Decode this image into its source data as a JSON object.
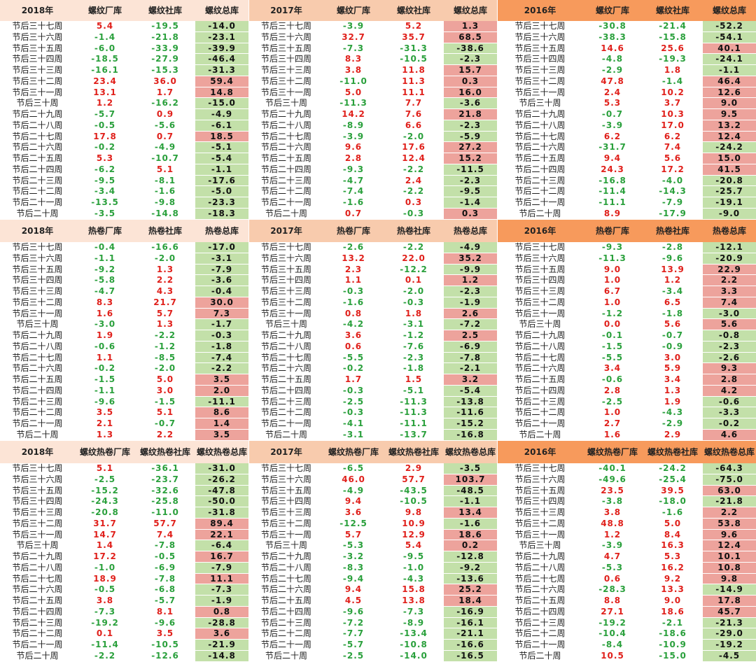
{
  "tables": [
    {
      "header": [
        "2018年",
        "螺纹厂库",
        "螺纹社库",
        "螺纹总库"
      ],
      "rows": [
        [
          "节后三十七周",
          "5.4",
          "-19.5",
          "-14.0"
        ],
        [
          "节后三十六周",
          "-1.4",
          "-21.8",
          "-23.1"
        ],
        [
          "节后三十五周",
          "-6.0",
          "-33.9",
          "-39.9"
        ],
        [
          "节后三十四周",
          "-18.5",
          "-27.9",
          "-46.4"
        ],
        [
          "节后三十三周",
          "-16.1",
          "-15.3",
          "-31.3"
        ],
        [
          "节后三十二周",
          "23.4",
          "36.0",
          "59.4"
        ],
        [
          "节后三十一周",
          "13.1",
          "1.7",
          "14.8"
        ],
        [
          "节后三十周",
          "1.2",
          "-16.2",
          "-15.0"
        ],
        [
          "节后二十九周",
          "-5.7",
          "0.9",
          "-4.9"
        ],
        [
          "节后二十八周",
          "-0.5",
          "-5.6",
          "-6.1"
        ],
        [
          "节后二十七周",
          "17.8",
          "0.7",
          "18.5"
        ],
        [
          "节后二十六周",
          "-0.2",
          "-4.9",
          "-5.1"
        ],
        [
          "节后二十五周",
          "5.3",
          "-10.7",
          "-5.4"
        ],
        [
          "节后二十四周",
          "-6.2",
          "5.1",
          "-1.1"
        ],
        [
          "节后二十三周",
          "-9.5",
          "-8.1",
          "-17.6"
        ],
        [
          "节后二十二周",
          "-3.4",
          "-1.6",
          "-5.0"
        ],
        [
          "节后二十一周",
          "-13.5",
          "-9.8",
          "-23.3"
        ],
        [
          "节后二十周",
          "-3.5",
          "-14.8",
          "-18.3"
        ]
      ]
    },
    {
      "header": [
        "2017年",
        "螺纹厂库",
        "螺纹社库",
        "螺纹总库"
      ],
      "rows": [
        [
          "节后三十七周",
          "-3.9",
          "5.2",
          "1.3"
        ],
        [
          "节后三十六周",
          "32.7",
          "35.7",
          "68.5"
        ],
        [
          "节后三十五周",
          "-7.3",
          "-31.3",
          "-38.6"
        ],
        [
          "节后三十四周",
          "8.3",
          "-10.5",
          "-2.3"
        ],
        [
          "节后三十三周",
          "3.8",
          "11.8",
          "15.7"
        ],
        [
          "节后三十二周",
          "-11.0",
          "11.3",
          "0.3"
        ],
        [
          "节后三十一周",
          "5.0",
          "11.1",
          "16.0"
        ],
        [
          "节后三十周",
          "-11.3",
          "7.7",
          "-3.6"
        ],
        [
          "节后二十九周",
          "14.2",
          "7.6",
          "21.8"
        ],
        [
          "节后二十八周",
          "-8.9",
          "6.6",
          "-2.3"
        ],
        [
          "节后二十七周",
          "-3.9",
          "-2.0",
          "-5.9"
        ],
        [
          "节后二十六周",
          "9.6",
          "17.6",
          "27.2"
        ],
        [
          "节后二十五周",
          "2.8",
          "12.4",
          "15.2"
        ],
        [
          "节后二十四周",
          "-9.3",
          "-2.2",
          "-11.5"
        ],
        [
          "节后二十三周",
          "-4.7",
          "2.4",
          "-2.3"
        ],
        [
          "节后二十二周",
          "-7.4",
          "-2.2",
          "-9.5"
        ],
        [
          "节后二十一周",
          "-1.6",
          "0.3",
          "-1.4"
        ],
        [
          "节后二十周",
          "0.7",
          "-0.3",
          "0.3"
        ]
      ]
    },
    {
      "header": [
        "2016年",
        "螺纹厂库",
        "螺纹社库",
        "螺纹总库"
      ],
      "rows": [
        [
          "节后三十七周",
          "-30.8",
          "-21.4",
          "-52.2"
        ],
        [
          "节后三十六周",
          "-38.3",
          "-15.8",
          "-54.1"
        ],
        [
          "节后三十五周",
          "14.6",
          "25.6",
          "40.1"
        ],
        [
          "节后三十四周",
          "-4.8",
          "-19.3",
          "-24.1"
        ],
        [
          "节后三十三周",
          "-2.9",
          "1.8",
          "-1.1"
        ],
        [
          "节后三十二周",
          "47.8",
          "-1.4",
          "46.4"
        ],
        [
          "节后三十一周",
          "2.4",
          "10.2",
          "12.6"
        ],
        [
          "节后三十周",
          "5.3",
          "3.7",
          "9.0"
        ],
        [
          "节后二十九周",
          "-0.7",
          "10.3",
          "9.5"
        ],
        [
          "节后二十八周",
          "-3.9",
          "17.0",
          "13.2"
        ],
        [
          "节后二十七周",
          "6.2",
          "6.2",
          "12.4"
        ],
        [
          "节后二十六周",
          "-31.7",
          "7.4",
          "-24.2"
        ],
        [
          "节后二十五周",
          "9.4",
          "5.6",
          "15.0"
        ],
        [
          "节后二十四周",
          "24.3",
          "17.2",
          "41.5"
        ],
        [
          "节后二十三周",
          "-16.8",
          "-4.0",
          "-20.8"
        ],
        [
          "节后二十二周",
          "-11.4",
          "-14.3",
          "-25.7"
        ],
        [
          "节后二十一周",
          "-11.1",
          "-7.9",
          "-19.1"
        ],
        [
          "节后二十周",
          "8.9",
          "-17.9",
          "-9.0"
        ]
      ]
    },
    {
      "header": [
        "2018年",
        "热卷厂库",
        "热卷社库",
        "热卷总库"
      ],
      "rows": [
        [
          "节后三十七周",
          "-0.4",
          "-16.6",
          "-17.0"
        ],
        [
          "节后三十六周",
          "-1.1",
          "-2.0",
          "-3.1"
        ],
        [
          "节后三十五周",
          "-9.2",
          "1.3",
          "-7.9"
        ],
        [
          "节后三十四周",
          "-5.8",
          "2.2",
          "-3.6"
        ],
        [
          "节后三十三周",
          "-4.7",
          "4.3",
          "-0.4"
        ],
        [
          "节后三十二周",
          "8.3",
          "21.7",
          "30.0"
        ],
        [
          "节后三十一周",
          "1.6",
          "5.7",
          "7.3"
        ],
        [
          "节后三十周",
          "-3.0",
          "1.3",
          "-1.7"
        ],
        [
          "节后二十九周",
          "1.9",
          "-2.2",
          "-0.3"
        ],
        [
          "节后二十八周",
          "-0.6",
          "-1.2",
          "-1.8"
        ],
        [
          "节后二十七周",
          "1.1",
          "-8.5",
          "-7.4"
        ],
        [
          "节后二十六周",
          "-0.2",
          "-2.0",
          "-2.2"
        ],
        [
          "节后二十五周",
          "-1.5",
          "5.0",
          "3.5"
        ],
        [
          "节后二十四周",
          "-1.1",
          "3.0",
          "2.0"
        ],
        [
          "节后二十三周",
          "-9.6",
          "-1.5",
          "-11.1"
        ],
        [
          "节后二十二周",
          "3.5",
          "5.1",
          "8.6"
        ],
        [
          "节后二十一周",
          "2.1",
          "-0.7",
          "1.4"
        ],
        [
          "节后二十周",
          "1.3",
          "2.2",
          "3.5"
        ]
      ]
    },
    {
      "header": [
        "2017年",
        "热卷厂库",
        "热卷社库",
        "热卷总库"
      ],
      "rows": [
        [
          "节后三十七周",
          "-2.6",
          "-2.2",
          "-4.9"
        ],
        [
          "节后三十六周",
          "13.2",
          "22.0",
          "35.2"
        ],
        [
          "节后三十五周",
          "2.3",
          "-12.2",
          "-9.9"
        ],
        [
          "节后三十四周",
          "1.1",
          "0.1",
          "1.2"
        ],
        [
          "节后三十三周",
          "-0.3",
          "-2.0",
          "-2.3"
        ],
        [
          "节后三十二周",
          "-1.6",
          "-0.3",
          "-1.9"
        ],
        [
          "节后三十一周",
          "0.8",
          "1.8",
          "2.6"
        ],
        [
          "节后三十周",
          "-4.2",
          "-3.1",
          "-7.2"
        ],
        [
          "节后二十九周",
          "3.6",
          "-1.2",
          "2.5"
        ],
        [
          "节后二十八周",
          "0.6",
          "-7.6",
          "-6.9"
        ],
        [
          "节后二十七周",
          "-5.5",
          "-2.3",
          "-7.8"
        ],
        [
          "节后二十六周",
          "-0.2",
          "-1.8",
          "-2.1"
        ],
        [
          "节后二十五周",
          "1.7",
          "1.5",
          "3.2"
        ],
        [
          "节后二十四周",
          "-0.3",
          "-5.1",
          "-5.4"
        ],
        [
          "节后二十三周",
          "-2.5",
          "-11.3",
          "-13.8"
        ],
        [
          "节后二十二周",
          "-0.3",
          "-11.3",
          "-11.6"
        ],
        [
          "节后二十一周",
          "-4.1",
          "-11.1",
          "-15.2"
        ],
        [
          "节后二十周",
          "-3.1",
          "-13.7",
          "-16.8"
        ]
      ]
    },
    {
      "header": [
        "2016年",
        "热卷厂库",
        "热卷社库",
        "热卷总库"
      ],
      "rows": [
        [
          "节后三十七周",
          "-9.3",
          "-2.8",
          "-12.1"
        ],
        [
          "节后三十六周",
          "-11.3",
          "-9.6",
          "-20.9"
        ],
        [
          "节后三十五周",
          "9.0",
          "13.9",
          "22.9"
        ],
        [
          "节后三十四周",
          "1.0",
          "1.2",
          "2.2"
        ],
        [
          "节后三十三周",
          "6.7",
          "-3.4",
          "3.3"
        ],
        [
          "节后三十二周",
          "1.0",
          "6.5",
          "7.4"
        ],
        [
          "节后三十一周",
          "-1.2",
          "-1.8",
          "-3.0"
        ],
        [
          "节后三十周",
          "0.0",
          "5.6",
          "5.6"
        ],
        [
          "节后二十九周",
          "-0.1",
          "-0.7",
          "-0.8"
        ],
        [
          "节后二十八周",
          "-1.5",
          "-0.9",
          "-2.3"
        ],
        [
          "节后二十七周",
          "-5.5",
          "3.0",
          "-2.6"
        ],
        [
          "节后二十六周",
          "3.4",
          "5.9",
          "9.3"
        ],
        [
          "节后二十五周",
          "-0.6",
          "3.4",
          "2.8"
        ],
        [
          "节后二十四周",
          "2.8",
          "1.3",
          "4.2"
        ],
        [
          "节后二十三周",
          "-2.5",
          "1.9",
          "-0.6"
        ],
        [
          "节后二十二周",
          "1.0",
          "-4.3",
          "-3.3"
        ],
        [
          "节后二十一周",
          "2.7",
          "-2.9",
          "-0.2"
        ],
        [
          "节后二十周",
          "1.6",
          "2.9",
          "4.6"
        ]
      ]
    },
    {
      "header": [
        "2018年",
        "螺纹热卷厂库",
        "螺纹热卷社库",
        "螺纹热卷总库"
      ],
      "rows": [
        [
          "节后三十七周",
          "5.1",
          "-36.1",
          "-31.0"
        ],
        [
          "节后三十六周",
          "-2.5",
          "-23.7",
          "-26.2"
        ],
        [
          "节后三十五周",
          "-15.2",
          "-32.6",
          "-47.8"
        ],
        [
          "节后三十四周",
          "-24.3",
          "-25.8",
          "-50.0"
        ],
        [
          "节后三十三周",
          "-20.8",
          "-11.0",
          "-31.8"
        ],
        [
          "节后三十二周",
          "31.7",
          "57.7",
          "89.4"
        ],
        [
          "节后三十一周",
          "14.7",
          "7.4",
          "22.1"
        ],
        [
          "节后三十周",
          "1.4",
          "-7.8",
          "-6.4"
        ],
        [
          "节后二十九周",
          "17.2",
          "-0.5",
          "16.7"
        ],
        [
          "节后二十八周",
          "-1.0",
          "-6.9",
          "-7.9"
        ],
        [
          "节后二十七周",
          "18.9",
          "-7.8",
          "11.1"
        ],
        [
          "节后二十六周",
          "-0.5",
          "-6.8",
          "-7.3"
        ],
        [
          "节后二十五周",
          "3.8",
          "-5.7",
          "-1.9"
        ],
        [
          "节后二十四周",
          "-7.3",
          "8.1",
          "0.8"
        ],
        [
          "节后二十三周",
          "-19.2",
          "-9.6",
          "-28.8"
        ],
        [
          "节后二十二周",
          "0.1",
          "3.5",
          "3.6"
        ],
        [
          "节后二十一周",
          "-11.4",
          "-10.5",
          "-21.9"
        ],
        [
          "节后二十周",
          "-2.2",
          "-12.6",
          "-14.8"
        ]
      ]
    },
    {
      "header": [
        "2017年",
        "螺纹热卷厂库",
        "螺纹热卷社库",
        "螺纹热卷总库"
      ],
      "rows": [
        [
          "节后三十七周",
          "-6.5",
          "2.9",
          "-3.5"
        ],
        [
          "节后三十六周",
          "46.0",
          "57.7",
          "103.7"
        ],
        [
          "节后三十五周",
          "-4.9",
          "-43.5",
          "-48.5"
        ],
        [
          "节后三十四周",
          "9.4",
          "-10.5",
          "-1.1"
        ],
        [
          "节后三十三周",
          "3.6",
          "9.8",
          "13.4"
        ],
        [
          "节后三十二周",
          "-12.5",
          "10.9",
          "-1.6"
        ],
        [
          "节后三十一周",
          "5.7",
          "12.9",
          "18.6"
        ],
        [
          "节后三十周",
          "-5.3",
          "5.4",
          "0.2"
        ],
        [
          "节后二十九周",
          "-3.2",
          "-9.5",
          "-12.8"
        ],
        [
          "节后二十八周",
          "-8.3",
          "-1.0",
          "-9.2"
        ],
        [
          "节后二十七周",
          "-9.4",
          "-4.3",
          "-13.6"
        ],
        [
          "节后二十六周",
          "9.4",
          "15.8",
          "25.2"
        ],
        [
          "节后二十五周",
          "4.5",
          "13.8",
          "18.4"
        ],
        [
          "节后二十四周",
          "-9.6",
          "-7.3",
          "-16.9"
        ],
        [
          "节后二十三周",
          "-7.2",
          "-8.9",
          "-16.1"
        ],
        [
          "节后二十二周",
          "-7.7",
          "-13.4",
          "-21.1"
        ],
        [
          "节后二十一周",
          "-5.7",
          "-10.8",
          "-16.6"
        ],
        [
          "节后二十周",
          "-2.5",
          "-14.0",
          "-16.5"
        ]
      ]
    },
    {
      "header": [
        "2016年",
        "螺纹热卷厂库",
        "螺纹热卷社库",
        "螺纹热卷总库"
      ],
      "rows": [
        [
          "节后三十七周",
          "-40.1",
          "-24.2",
          "-64.3"
        ],
        [
          "节后三十六周",
          "-49.6",
          "-25.4",
          "-75.0"
        ],
        [
          "节后三十五周",
          "23.5",
          "39.5",
          "63.0"
        ],
        [
          "节后三十四周",
          "-3.8",
          "-18.0",
          "-21.8"
        ],
        [
          "节后三十三周",
          "3.8",
          "-1.6",
          "2.2"
        ],
        [
          "节后三十二周",
          "48.8",
          "5.0",
          "53.8"
        ],
        [
          "节后三十一周",
          "1.2",
          "8.4",
          "9.6"
        ],
        [
          "节后三十周",
          "-3.9",
          "16.3",
          "12.4"
        ],
        [
          "节后二十九周",
          "4.7",
          "5.3",
          "10.1"
        ],
        [
          "节后二十八周",
          "-5.3",
          "16.2",
          "10.8"
        ],
        [
          "节后二十七周",
          "0.6",
          "9.2",
          "9.8"
        ],
        [
          "节后二十六周",
          "-28.3",
          "13.3",
          "-14.9"
        ],
        [
          "节后二十五周",
          "8.8",
          "9.0",
          "17.8"
        ],
        [
          "节后二十四周",
          "27.1",
          "18.6",
          "45.7"
        ],
        [
          "节后二十三周",
          "-19.2",
          "-2.1",
          "-21.3"
        ],
        [
          "节后二十二周",
          "-10.4",
          "-18.6",
          "-29.0"
        ],
        [
          "节后二十一周",
          "-8.4",
          "-10.9",
          "-19.2"
        ],
        [
          "节后二十周",
          "10.5",
          "-15.0",
          "-4.5"
        ]
      ]
    }
  ]
}
